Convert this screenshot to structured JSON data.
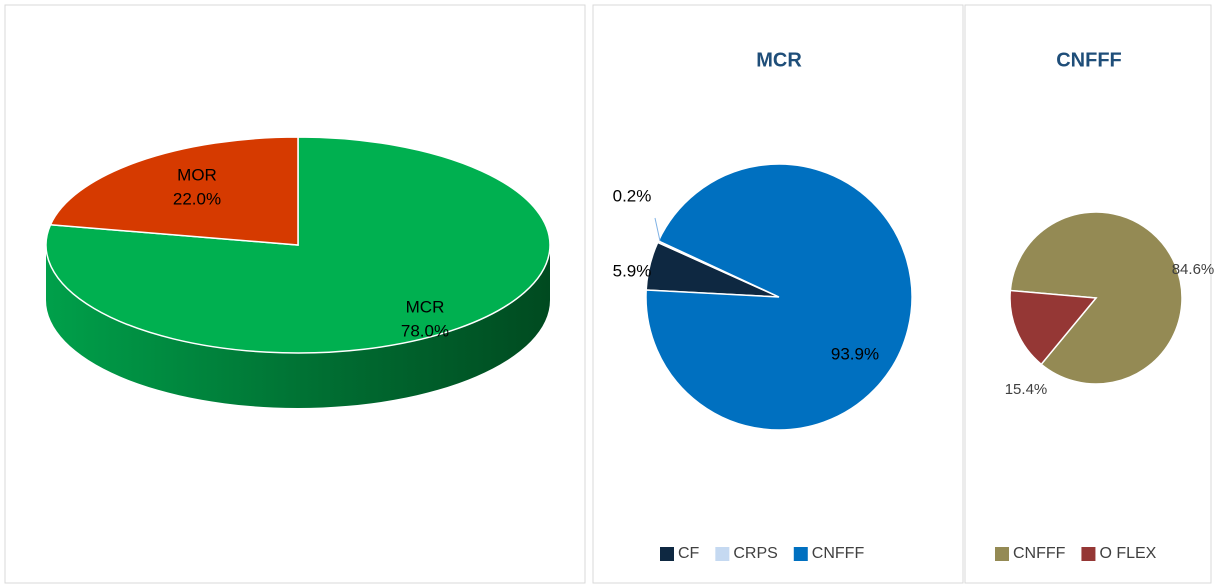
{
  "chart_data": [
    {
      "type": "pie3d",
      "categories": [
        "MCR",
        "MOR"
      ],
      "values": [
        78.0,
        22.0
      ],
      "value_labels": [
        "78.0%",
        "22.0%"
      ],
      "colors": [
        "#00b050",
        "#d63a00"
      ]
    },
    {
      "type": "pie",
      "title": "MCR",
      "categories": [
        "CF",
        "CRPS",
        "CNFFF"
      ],
      "values": [
        5.9,
        0.2,
        93.9
      ],
      "value_labels": [
        "5.9%",
        "0.2%",
        "93.9%"
      ],
      "colors": [
        "#0e2841",
        "#c5d9f1",
        "#0070c0"
      ],
      "legend": "bottom"
    },
    {
      "type": "pie",
      "title": "CNFFF",
      "categories": [
        "CNFFF",
        "O FLEX"
      ],
      "values": [
        84.6,
        15.4
      ],
      "value_labels": [
        "84.6%",
        "15.4%"
      ],
      "colors": [
        "#948a54",
        "#953735"
      ],
      "legend": "bottom"
    }
  ]
}
